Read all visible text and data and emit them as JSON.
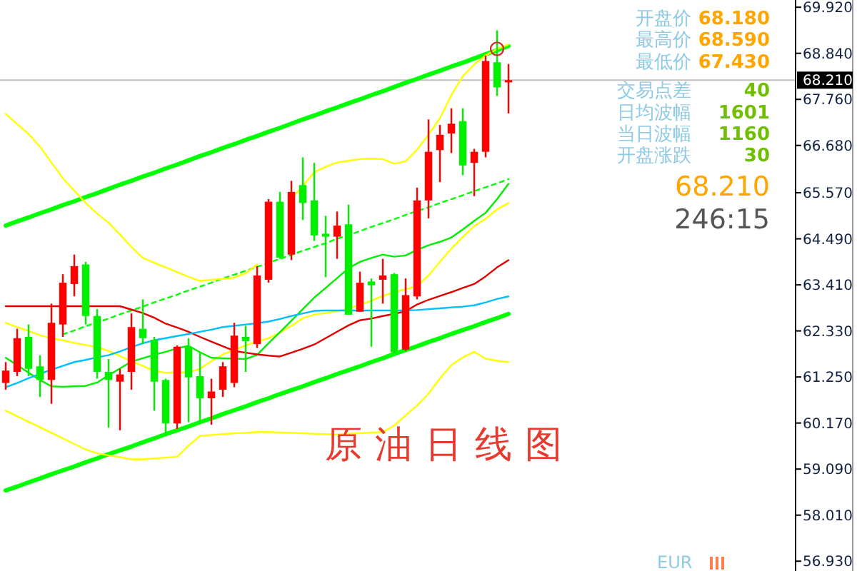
{
  "chart_data": {
    "type": "candlestick",
    "title": "原油日线图",
    "categories": [
      null,
      null,
      null,
      null,
      null,
      null,
      null,
      null,
      null,
      null,
      null,
      null,
      null,
      null,
      null,
      null,
      null,
      null,
      null,
      null,
      null,
      null,
      null,
      null,
      null,
      null,
      null,
      null,
      null,
      null,
      null,
      null,
      null,
      null,
      null,
      null,
      null,
      null,
      null,
      null,
      null,
      null,
      null,
      null,
      null
    ],
    "ohlc": [
      [
        61.11,
        61.6,
        60.95,
        61.4
      ],
      [
        61.37,
        62.38,
        61.27,
        62.16
      ],
      [
        62.19,
        62.48,
        61.27,
        61.44
      ],
      [
        61.5,
        61.76,
        60.78,
        61.18
      ],
      [
        61.18,
        62.97,
        60.62,
        62.52
      ],
      [
        62.48,
        63.66,
        62.19,
        63.46
      ],
      [
        63.43,
        64.12,
        63.14,
        63.85
      ],
      [
        63.89,
        63.95,
        62.48,
        62.68
      ],
      [
        62.68,
        62.84,
        61.21,
        61.37
      ],
      [
        61.37,
        61.67,
        60.06,
        61.18
      ],
      [
        61.14,
        61.44,
        60.0,
        61.31
      ],
      [
        61.37,
        62.74,
        60.95,
        62.42
      ],
      [
        62.38,
        63.07,
        62.02,
        62.16
      ],
      [
        62.12,
        62.19,
        60.46,
        61.14
      ],
      [
        61.18,
        61.21,
        59.87,
        60.16
      ],
      [
        60.16,
        61.99,
        60.03,
        61.96
      ],
      [
        61.96,
        62.16,
        60.19,
        61.24
      ],
      [
        61.27,
        61.83,
        60.19,
        60.75
      ],
      [
        60.75,
        61.21,
        60.13,
        60.91
      ],
      [
        60.95,
        61.6,
        60.78,
        61.5
      ],
      [
        61.11,
        62.52,
        61.01,
        62.22
      ],
      [
        62.19,
        62.45,
        61.37,
        62.09
      ],
      [
        62.02,
        63.85,
        61.93,
        63.63
      ],
      [
        63.53,
        65.42,
        63.46,
        65.36
      ],
      [
        65.36,
        65.59,
        64.02,
        64.05
      ],
      [
        64.12,
        65.85,
        63.99,
        65.59
      ],
      [
        65.75,
        66.4,
        64.93,
        65.33
      ],
      [
        65.39,
        66.27,
        64.44,
        64.57
      ],
      [
        64.61,
        65.03,
        63.59,
        64.54
      ],
      [
        64.54,
        65.13,
        64.02,
        64.8
      ],
      [
        64.83,
        65.29,
        62.71,
        62.71
      ],
      [
        62.78,
        63.72,
        62.78,
        63.46
      ],
      [
        63.49,
        63.56,
        61.96,
        63.4
      ],
      [
        63.53,
        64.02,
        62.97,
        63.63
      ],
      [
        63.66,
        63.69,
        61.8,
        61.83
      ],
      [
        61.89,
        63.56,
        61.86,
        63.17
      ],
      [
        63.14,
        65.69,
        63.07,
        65.39
      ],
      [
        65.39,
        67.29,
        64.97,
        66.53
      ],
      [
        66.57,
        67.16,
        65.82,
        66.93
      ],
      [
        66.96,
        67.55,
        66.5,
        67.19
      ],
      [
        67.25,
        67.55,
        65.98,
        66.21
      ],
      [
        66.27,
        66.6,
        65.49,
        66.53
      ],
      [
        66.53,
        68.79,
        66.4,
        68.66
      ],
      [
        68.63,
        69.38,
        67.84,
        68.04
      ],
      [
        68.18,
        68.59,
        67.43,
        68.21
      ]
    ],
    "series": [
      {
        "type": "line",
        "color": "#00ff00",
        "values": [
          64.8,
          64.9,
          64.99,
          65.09,
          65.18,
          65.28,
          65.37,
          65.47,
          65.56,
          65.66,
          65.76,
          65.85,
          65.95,
          66.04,
          66.14,
          66.23,
          66.33,
          66.43,
          66.52,
          66.62,
          66.71,
          66.81,
          66.9,
          67.0,
          67.09,
          67.19,
          67.29,
          67.38,
          67.48,
          67.57,
          67.67,
          67.76,
          67.86,
          67.95,
          68.05,
          68.15,
          68.24,
          68.34,
          68.43,
          68.53,
          68.62,
          68.72,
          68.82,
          68.91,
          69.01
        ]
      },
      {
        "type": "line",
        "color": "#00ff00",
        "values": [
          58.59,
          58.68,
          58.78,
          58.87,
          58.97,
          59.06,
          59.15,
          59.25,
          59.34,
          59.44,
          59.53,
          59.62,
          59.72,
          59.81,
          59.91,
          60.0,
          60.09,
          60.19,
          60.28,
          60.38,
          60.47,
          60.56,
          60.66,
          60.75,
          60.85,
          60.94,
          61.03,
          61.13,
          61.22,
          61.32,
          61.41,
          61.5,
          61.6,
          61.69,
          61.79,
          61.88,
          61.97,
          62.07,
          62.16,
          62.26,
          62.35,
          62.44,
          62.54,
          62.63,
          62.73
        ]
      },
      {
        "type": "line",
        "color": "#00ff00",
        "line_style": "dashed",
        "values": [
          null,
          null,
          null,
          null,
          null,
          62.25,
          62.34,
          62.44,
          62.53,
          62.62,
          62.72,
          62.81,
          62.9,
          63.0,
          63.09,
          63.18,
          63.28,
          63.37,
          63.46,
          63.56,
          63.65,
          63.74,
          63.83,
          63.93,
          64.02,
          64.11,
          64.21,
          64.3,
          64.39,
          64.49,
          64.58,
          64.67,
          64.77,
          64.86,
          64.95,
          65.05,
          65.14,
          65.23,
          65.33,
          65.42,
          65.51,
          65.61,
          65.7,
          65.79,
          65.89
        ]
      },
      {
        "type": "line",
        "color": "#ffff00",
        "values": [
          67.42,
          67.18,
          66.95,
          66.65,
          66.28,
          65.91,
          65.62,
          65.33,
          65.08,
          64.87,
          64.59,
          64.3,
          64.04,
          63.93,
          63.82,
          63.71,
          63.6,
          63.5,
          63.53,
          63.55,
          63.58,
          63.68,
          63.89,
          null,
          null,
          65.42,
          65.73,
          66.05,
          66.18,
          66.28,
          66.32,
          66.36,
          66.37,
          66.36,
          66.25,
          66.31,
          66.58,
          66.93,
          67.32,
          67.86,
          68.3,
          68.58,
          68.79,
          68.94,
          69.05
        ]
      },
      {
        "type": "line",
        "color": "#ffff00",
        "values": [
          60.46,
          60.33,
          60.2,
          60.07,
          59.94,
          59.81,
          59.68,
          59.55,
          59.46,
          59.41,
          59.37,
          59.32,
          59.32,
          59.34,
          59.36,
          59.38,
          59.64,
          59.87,
          59.89,
          59.91,
          59.93,
          59.94,
          59.96,
          59.96,
          59.95,
          59.94,
          59.93,
          59.92,
          59.91,
          59.9,
          59.92,
          59.93,
          59.95,
          59.96,
          60.11,
          60.35,
          60.58,
          60.86,
          61.22,
          61.53,
          61.71,
          61.84,
          61.68,
          61.63,
          61.6
        ]
      },
      {
        "type": "line",
        "color": "#ffff00",
        "values": [
          62.52,
          62.42,
          62.33,
          62.23,
          62.16,
          62.11,
          62.05,
          62.0,
          61.95,
          61.86,
          61.74,
          61.62,
          61.51,
          61.39,
          61.35,
          61.36,
          61.36,
          61.44,
          61.62,
          61.78,
          61.88,
          61.99,
          62.08,
          62.16,
          62.29,
          62.45,
          62.63,
          62.71,
          62.75,
          62.79,
          62.85,
          62.94,
          63.04,
          63.15,
          63.24,
          63.31,
          63.38,
          63.63,
          63.95,
          64.26,
          64.53,
          64.79,
          64.96,
          65.18,
          65.33
        ]
      },
      {
        "type": "line",
        "color": "#00ee00",
        "values": [
          61.7,
          61.53,
          61.35,
          61.18,
          61.03,
          61.02,
          61.03,
          61.04,
          61.12,
          61.29,
          61.45,
          61.61,
          61.69,
          61.77,
          61.84,
          61.92,
          61.98,
          61.83,
          61.7,
          61.69,
          61.68,
          61.67,
          61.77,
          62.04,
          62.3,
          62.57,
          62.84,
          63.11,
          63.34,
          63.57,
          63.8,
          63.95,
          64.04,
          64.12,
          64.07,
          64.1,
          64.23,
          64.34,
          64.42,
          64.52,
          64.71,
          64.91,
          65.1,
          65.42,
          65.78
        ]
      },
      {
        "type": "line",
        "color": "#e00000",
        "values": [
          62.91,
          62.91,
          62.91,
          62.91,
          62.91,
          62.91,
          62.91,
          62.91,
          62.91,
          62.91,
          62.91,
          62.83,
          62.75,
          62.64,
          62.5,
          62.41,
          62.31,
          62.19,
          62.08,
          61.97,
          61.86,
          61.82,
          61.78,
          61.75,
          61.73,
          61.82,
          61.91,
          62.01,
          62.16,
          62.31,
          62.46,
          62.58,
          62.62,
          62.68,
          62.73,
          62.79,
          62.95,
          63.06,
          63.15,
          63.24,
          63.34,
          63.43,
          63.61,
          63.82,
          63.99
        ]
      },
      {
        "type": "line",
        "color": "#00bfff",
        "values": [
          61.01,
          61.11,
          61.22,
          61.32,
          61.42,
          61.51,
          61.6,
          61.65,
          61.71,
          61.76,
          61.85,
          61.95,
          62.04,
          62.11,
          62.16,
          62.21,
          62.26,
          62.31,
          62.36,
          62.42,
          62.45,
          62.48,
          62.51,
          62.55,
          62.61,
          62.68,
          62.74,
          62.8,
          62.81,
          62.81,
          62.81,
          62.81,
          62.81,
          62.81,
          62.81,
          62.81,
          62.82,
          62.84,
          62.86,
          62.88,
          62.9,
          62.93,
          63.0,
          63.08,
          63.14
        ]
      }
    ],
    "ylim": [
      56.7,
      70.09
    ],
    "yticks": [
      {
        "value": 56.93,
        "label": "56.930"
      },
      {
        "value": 58.01,
        "label": "58.010"
      },
      {
        "value": 59.09,
        "label": "59.090"
      },
      {
        "value": 60.17,
        "label": "60.170"
      },
      {
        "value": 61.25,
        "label": "61.250"
      },
      {
        "value": 62.33,
        "label": "62.330"
      },
      {
        "value": 63.41,
        "label": "63.410"
      },
      {
        "value": 64.49,
        "label": "64.490"
      },
      {
        "value": 65.57,
        "label": "65.570"
      },
      {
        "value": 66.68,
        "label": "66.680"
      },
      {
        "value": 67.76,
        "label": "67.760"
      },
      {
        "value": 68.84,
        "label": "68.840"
      },
      {
        "value": 69.92,
        "label": "69.920"
      }
    ],
    "tick_labels": "y",
    "ref_lines": [
      {
        "axis": "y",
        "value": 68.21,
        "label": "68.210",
        "color": "#c0c0c0"
      }
    ],
    "annotations": [
      "开盘价",
      "68.180",
      "最高价",
      "68.590",
      "最低价",
      "67.430",
      "交易点差",
      "40",
      "日均波幅",
      "1601",
      "当日波幅",
      "1160",
      "开盘涨跌",
      "30",
      "68.210",
      "246:15",
      "EUR"
    ]
  }
}
